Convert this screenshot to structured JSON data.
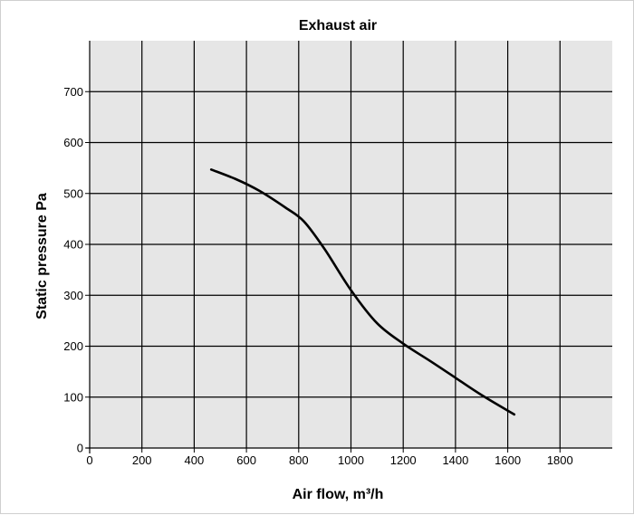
{
  "chart_data": {
    "type": "line",
    "title": "Exhaust air",
    "xlabel": "Air flow, m³/h",
    "ylabel": "Static pressure Pa",
    "xlim": [
      0,
      2000
    ],
    "ylim": [
      0,
      800
    ],
    "xticks": [
      0,
      200,
      400,
      600,
      800,
      1000,
      1200,
      1400,
      1600,
      1800
    ],
    "yticks": [
      0,
      100,
      200,
      300,
      400,
      500,
      600,
      700
    ],
    "grid": true,
    "colors": {
      "plot_background": "#e6e6e6",
      "grid": "#000000",
      "line": "#000000"
    },
    "series": [
      {
        "x": [
          465,
          560,
          650,
          750,
          820,
          900,
          1000,
          1100,
          1200,
          1300,
          1400,
          1500,
          1625
        ],
        "y": [
          547,
          528,
          505,
          472,
          445,
          390,
          310,
          245,
          205,
          172,
          138,
          104,
          66
        ]
      }
    ]
  }
}
